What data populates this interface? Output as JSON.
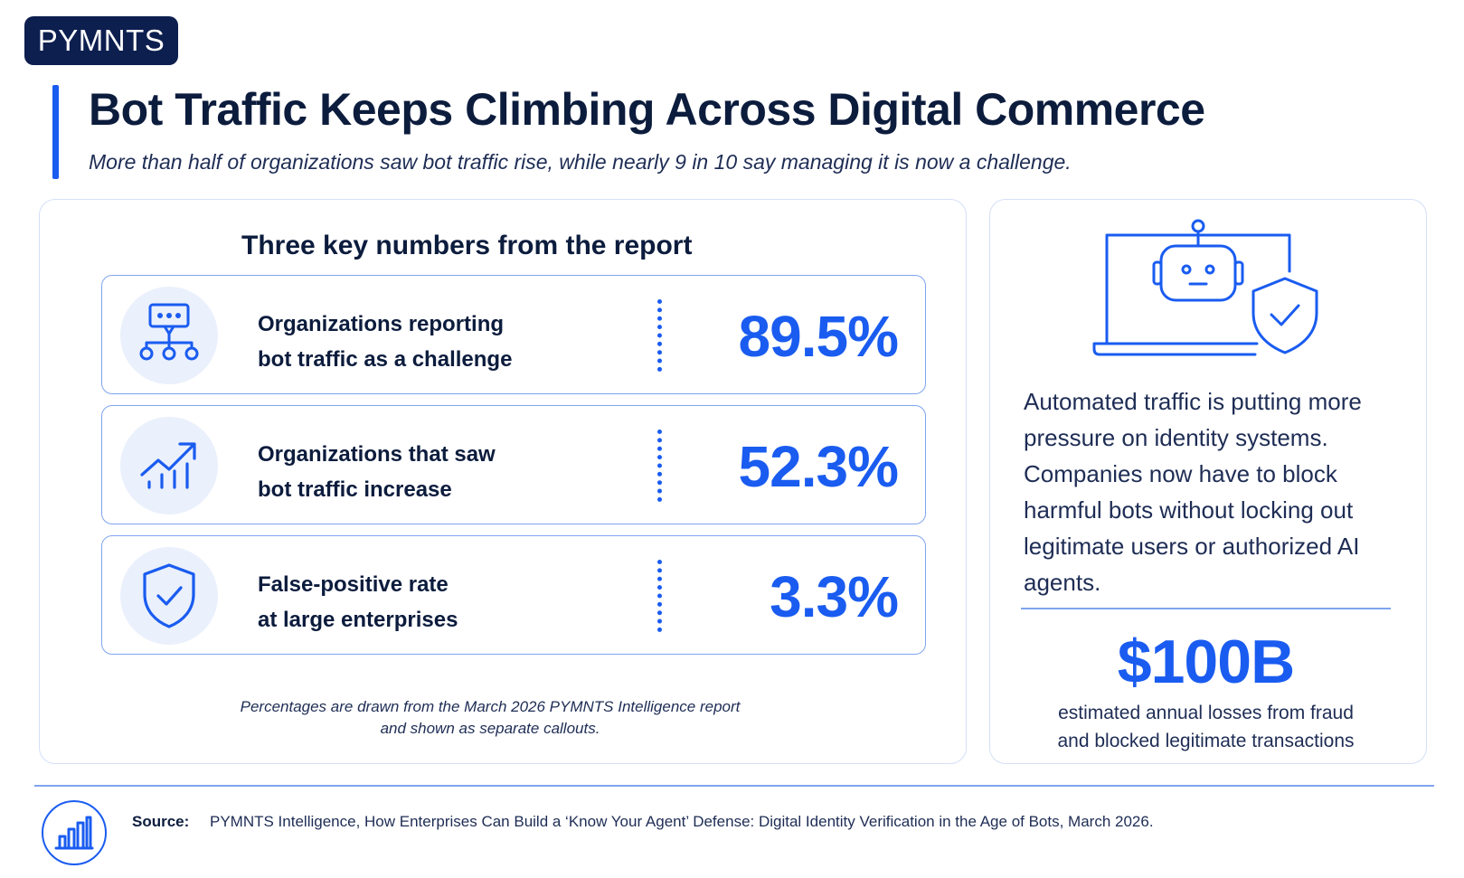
{
  "brand": {
    "logo_text": "PYMNTS"
  },
  "header": {
    "title": "Bot Traffic Keeps Climbing Across Digital Commerce",
    "subtitle": "More than half of organizations saw bot traffic rise, while nearly 9 in 10 say managing it is now a challenge."
  },
  "key_numbers": {
    "heading": "Three key numbers from the report",
    "items": [
      {
        "label_line1": "Organizations reporting",
        "label_line2": "bot traffic as a challenge",
        "value": "89.5%",
        "icon": "chat-network-icon"
      },
      {
        "label_line1": "Organizations that saw",
        "label_line2": "bot traffic increase",
        "value": "52.3%",
        "icon": "trend-up-chart-icon"
      },
      {
        "label_line1": "False-positive rate",
        "label_line2": "at large enterprises",
        "value": "3.3%",
        "icon": "shield-check-icon"
      }
    ],
    "footnote_line1": "Percentages are drawn from the March 2026 PYMNTS Intelligence report",
    "footnote_line2": "and shown as separate callouts."
  },
  "side_panel": {
    "illustration": "robot-laptop-shield-icon",
    "body": "Automated traffic is putting more pressure on identity systems. Companies now have to block harmful bots without locking out legitimate users or authorized AI agents.",
    "big_number": "$100B",
    "big_caption_line1": "estimated annual losses from fraud",
    "big_caption_line2": "and blocked legitimate transactions"
  },
  "source": {
    "icon": "bar-chart-icon",
    "label": "Source:",
    "text": "PYMNTS Intelligence, How Enterprises Can Build a ‘Know Your Agent’ Defense: Digital Identity Verification in the Age of Bots, March 2026."
  },
  "colors": {
    "accent": "#1a5cf0",
    "navy": "#0d1f4f",
    "border": "#7fa4ef",
    "icon_bg": "#eaf0fc"
  }
}
